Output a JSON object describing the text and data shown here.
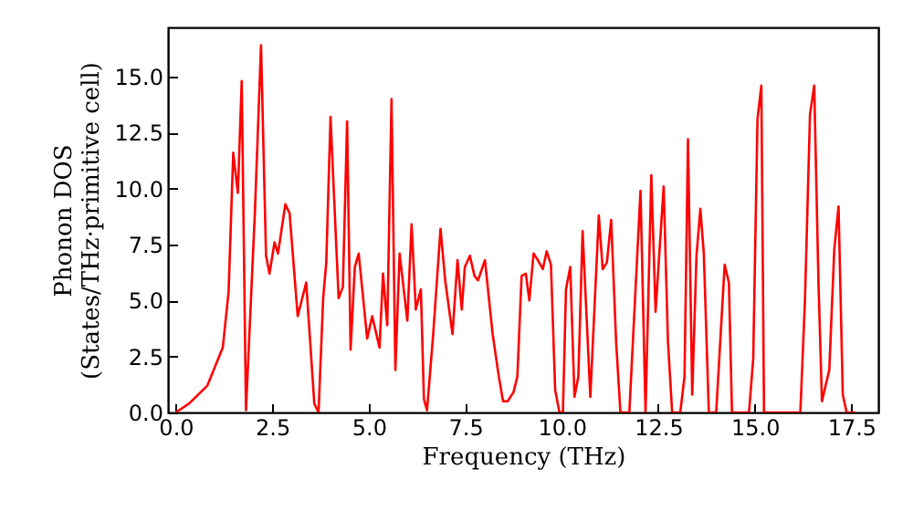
{
  "chart_data": {
    "type": "line",
    "xlabel": "Frequency (THz)",
    "ylabel": "Phonon DOS\n(States/THz·primitive cell)",
    "x": [
      0,
      0.35,
      0.82,
      1.22,
      1.37,
      1.49,
      1.61,
      1.71,
      1.82,
      2.05,
      2.21,
      2.34,
      2.43,
      2.56,
      2.65,
      2.84,
      2.95,
      3.16,
      3.38,
      3.59,
      3.7,
      3.82,
      3.9,
      4.01,
      4.22,
      4.33,
      4.44,
      4.53,
      4.64,
      4.74,
      4.96,
      5.09,
      5.28,
      5.37,
      5.48,
      5.59,
      5.69,
      5.8,
      6.0,
      6.11,
      6.22,
      6.35,
      6.43,
      6.51,
      6.67,
      6.86,
      6.98,
      7.17,
      7.3,
      7.41,
      7.49,
      7.62,
      7.74,
      7.83,
      8.01,
      8.21,
      8.37,
      8.48,
      8.6,
      8.75,
      8.85,
      8.96,
      9.07,
      9.16,
      9.27,
      9.38,
      9.51,
      9.61,
      9.72,
      9.83,
      9.94,
      10.03,
      10.11,
      10.22,
      10.33,
      10.43,
      10.54,
      10.74,
      10.96,
      11.06,
      11.17,
      11.28,
      11.41,
      11.52,
      11.75,
      12.04,
      12.17,
      12.32,
      12.43,
      12.64,
      12.75,
      12.86,
      13.07,
      13.18,
      13.27,
      13.38,
      13.49,
      13.59,
      13.68,
      13.81,
      14.0,
      14.22,
      14.33,
      14.41,
      14.85,
      14.96,
      15.07,
      15.17,
      15.24,
      16.18,
      16.3,
      16.43,
      16.54,
      16.65,
      16.74,
      16.93,
      17.06,
      17.17,
      17.28,
      17.38,
      17.6
    ],
    "series": [
      {
        "color": "#ff0000",
        "values": [
          0,
          0.4,
          1.2,
          2.9,
          5.4,
          11.6,
          9.8,
          14.8,
          0.1,
          8.9,
          16.4,
          7.0,
          6.2,
          7.6,
          7.1,
          9.3,
          8.9,
          4.3,
          5.8,
          0.4,
          0,
          5.1,
          6.7,
          13.2,
          5.1,
          5.6,
          13.0,
          2.8,
          6.5,
          7.1,
          3.3,
          4.3,
          2.9,
          6.2,
          3.9,
          14.0,
          1.9,
          7.1,
          4.1,
          8.4,
          4.6,
          5.5,
          0.6,
          0.1,
          3.5,
          8.2,
          5.9,
          3.5,
          6.8,
          4.6,
          6.5,
          7.0,
          6.1,
          5.9,
          6.8,
          3.5,
          1.6,
          0.5,
          0.5,
          0.9,
          1.6,
          6.1,
          6.2,
          5.0,
          7.1,
          6.8,
          6.4,
          7.2,
          6.6,
          1.0,
          0,
          0,
          5.5,
          6.5,
          0.7,
          1.6,
          8.1,
          0.7,
          8.8,
          6.4,
          6.7,
          8.6,
          3.1,
          0,
          0,
          9.9,
          0,
          10.6,
          4.5,
          10.1,
          3.2,
          0,
          0,
          1.6,
          12.2,
          0.8,
          7.0,
          9.1,
          7.1,
          0,
          0,
          6.6,
          5.8,
          0,
          0,
          2.4,
          13.1,
          14.6,
          0,
          0,
          5.0,
          13.3,
          14.6,
          5.8,
          0.5,
          1.9,
          7.3,
          9.2,
          0.8,
          0,
          0
        ]
      }
    ],
    "xlim": [
      -0.2,
      18.2
    ],
    "ylim": [
      0,
      17.2
    ],
    "xticks": [
      {
        "value": 0,
        "label": "0.0"
      },
      {
        "value": 2.5,
        "label": "2.5"
      },
      {
        "value": 5,
        "label": "5.0"
      },
      {
        "value": 7.5,
        "label": "7.5"
      },
      {
        "value": 10,
        "label": "10.0"
      },
      {
        "value": 12.5,
        "label": "12.5"
      },
      {
        "value": 15,
        "label": "15.0"
      },
      {
        "value": 17.5,
        "label": "17.5"
      }
    ],
    "yticks": [
      {
        "value": 0,
        "label": "0.0"
      },
      {
        "value": 2.5,
        "label": "2.5"
      },
      {
        "value": 5,
        "label": "5.0"
      },
      {
        "value": 7.5,
        "label": "7.5"
      },
      {
        "value": 10,
        "label": "10.0"
      },
      {
        "value": 12.5,
        "label": "12.5"
      },
      {
        "value": 15,
        "label": "15.0"
      }
    ],
    "marker": "none",
    "line_style": "solid",
    "grid": false
  }
}
